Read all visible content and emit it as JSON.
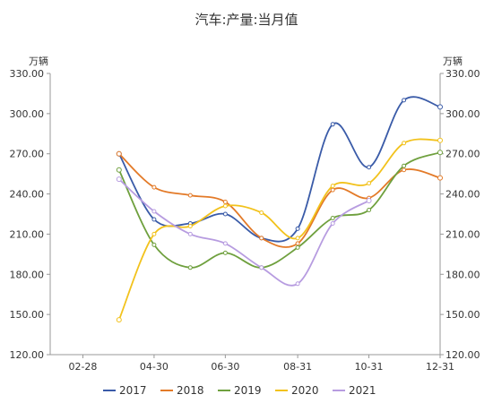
{
  "chart_data": {
    "type": "line",
    "title": "汽车:产量:当月值",
    "left_unit": "万辆",
    "right_unit": "万辆",
    "y_range": [
      120,
      330
    ],
    "y_ticks": [
      "330.00",
      "300.00",
      "270.00",
      "240.00",
      "210.00",
      "180.00",
      "150.00",
      "120.00"
    ],
    "x_tick_labels": [
      "02-28",
      "04-30",
      "06-30",
      "08-31",
      "10-31",
      "12-31"
    ],
    "x_points": [
      "03-31",
      "04-30",
      "05-31",
      "06-30",
      "07-31",
      "08-31",
      "09-30",
      "10-31",
      "11-30",
      "12-31"
    ],
    "grid": false,
    "legend_position": "bottom",
    "series": [
      {
        "name": "2017",
        "color": "#3a5ba8",
        "values": [
          270.0,
          221.0,
          218.0,
          225.0,
          207.0,
          214.0,
          292.0,
          260.0,
          310.0,
          305.0
        ]
      },
      {
        "name": "2018",
        "color": "#e37a28",
        "values": [
          270.0,
          245.0,
          239.0,
          234.0,
          207.0,
          203.0,
          243.0,
          237.0,
          258.0,
          252.0
        ]
      },
      {
        "name": "2019",
        "color": "#6fa03e",
        "values": [
          258.0,
          202.0,
          185.0,
          196.0,
          185.0,
          200.0,
          222.0,
          228.0,
          261.0,
          271.0
        ]
      },
      {
        "name": "2020",
        "color": "#f2c21c",
        "values": [
          146.0,
          210.0,
          216.0,
          231.0,
          226.0,
          207.0,
          246.0,
          248.0,
          278.0,
          280.0
        ]
      },
      {
        "name": "2021",
        "color": "#b79ce0",
        "values": [
          251.0,
          227.0,
          210.0,
          203.0,
          185.0,
          173.0,
          218.0,
          235.0,
          null,
          null
        ]
      }
    ]
  }
}
